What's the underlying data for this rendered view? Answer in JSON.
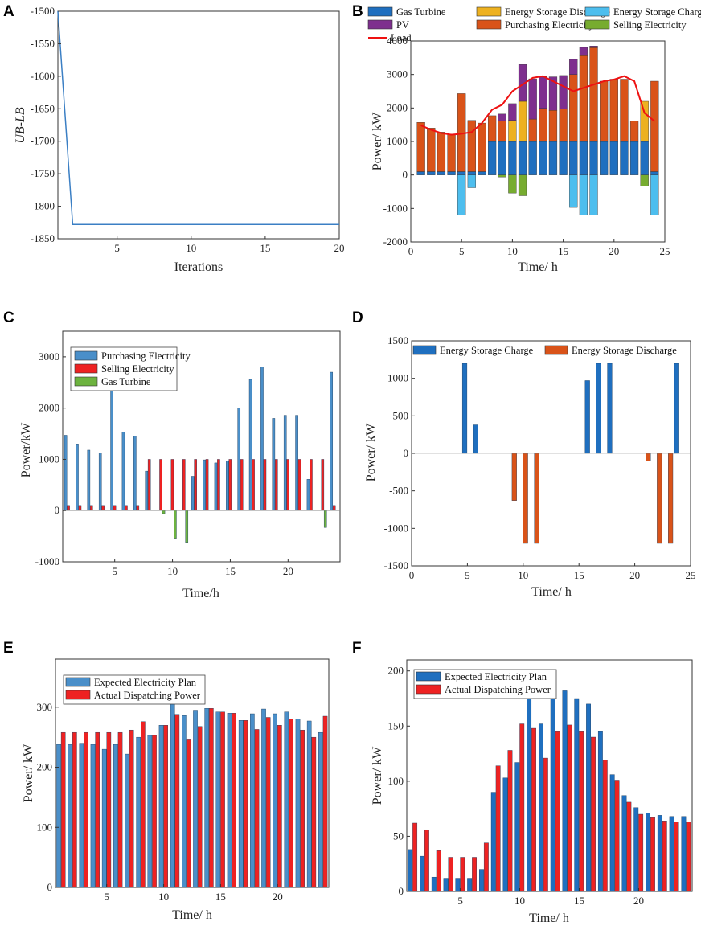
{
  "panels": {
    "A": {
      "label": "A",
      "chart_data": {
        "type": "line",
        "xlabel": "Iterations",
        "ylabel": "UB-LB",
        "xlim": [
          1,
          20
        ],
        "ylim": [
          -1850,
          -1500
        ],
        "xticks": [
          5,
          10,
          15,
          20
        ],
        "yticks": [
          -1500,
          -1550,
          -1600,
          -1650,
          -1700,
          -1750,
          -1800,
          -1850
        ],
        "x": [
          1,
          2,
          3,
          4,
          5,
          6,
          7,
          8,
          9,
          10,
          11,
          12,
          13,
          14,
          15,
          16,
          17,
          18,
          19,
          20
        ],
        "y": [
          -1500,
          -1828,
          -1828,
          -1828,
          -1828,
          -1828,
          -1828,
          -1828,
          -1828,
          -1828,
          -1828,
          -1828,
          -1828,
          -1828,
          -1828,
          -1828,
          -1828,
          -1828,
          -1828,
          -1828
        ],
        "color": "#3b7fc4"
      }
    },
    "B": {
      "label": "B",
      "chart_data": {
        "type": "bar",
        "stacked": true,
        "xlabel": "Time/ h",
        "ylabel": "Power/ kW",
        "xlim": [
          0,
          25
        ],
        "ylim": [
          -2000,
          4000
        ],
        "xticks": [
          0,
          5,
          10,
          15,
          20,
          25
        ],
        "yticks": [
          -2000,
          -1000,
          0,
          1000,
          2000,
          3000,
          4000
        ],
        "categories": [
          1,
          2,
          3,
          4,
          5,
          6,
          7,
          8,
          9,
          10,
          11,
          12,
          13,
          14,
          15,
          16,
          17,
          18,
          19,
          20,
          21,
          22,
          23,
          24
        ],
        "series": [
          {
            "name": "Gas Turbine",
            "color": "#1f6fbf",
            "values": [
              100,
              100,
              100,
              100,
              100,
              100,
              100,
              1000,
              1000,
              1000,
              1000,
              1000,
              1000,
              1000,
              1000,
              1000,
              1000,
              1000,
              1000,
              1000,
              1000,
              1000,
              1000,
              100
            ]
          },
          {
            "name": "Purchasing Electricity",
            "color": "#d95319",
            "values": [
              1470,
              1300,
              1180,
              1120,
              2330,
              1530,
              1450,
              770,
              620,
              0,
              0,
              670,
              990,
              930,
              970,
              2000,
              2560,
              2800,
              1800,
              1860,
              1860,
              610,
              0,
              2700
            ]
          },
          {
            "name": "Energy Storage Discharge",
            "color": "#edb120",
            "values": [
              0,
              0,
              0,
              0,
              0,
              0,
              0,
              0,
              0,
              630,
              1200,
              0,
              0,
              0,
              0,
              0,
              0,
              0,
              0,
              0,
              0,
              0,
              1200,
              0
            ]
          },
          {
            "name": "PV",
            "color": "#7e2f8e",
            "values": [
              0,
              0,
              0,
              0,
              0,
              0,
              0,
              0,
              200,
              500,
              1100,
              1200,
              950,
              1000,
              1000,
              450,
              250,
              50,
              0,
              0,
              0,
              0,
              0,
              0
            ]
          },
          {
            "name": "Energy Storage Charge",
            "color": "#4dbeee",
            "values": [
              0,
              0,
              0,
              0,
              -1200,
              -380,
              0,
              0,
              0,
              0,
              0,
              0,
              0,
              0,
              0,
              -970,
              -1200,
              -1200,
              0,
              0,
              0,
              0,
              0,
              -1200
            ]
          },
          {
            "name": "Selling Electricity",
            "color": "#77ac30",
            "values": [
              0,
              0,
              0,
              0,
              0,
              0,
              0,
              0,
              -60,
              -540,
              -620,
              0,
              0,
              0,
              0,
              0,
              0,
              0,
              0,
              0,
              0,
              0,
              -330,
              0
            ]
          }
        ],
        "line": {
          "name": "Load",
          "color": "#ee1111",
          "x": [
            1,
            2,
            3,
            4,
            5,
            6,
            7,
            8,
            9,
            10,
            11,
            12,
            13,
            14,
            15,
            16,
            17,
            18,
            19,
            20,
            21,
            22,
            23,
            24
          ],
          "values": [
            1480,
            1350,
            1250,
            1200,
            1230,
            1280,
            1550,
            1950,
            2100,
            2500,
            2700,
            2900,
            2950,
            2800,
            2650,
            2500,
            2600,
            2700,
            2800,
            2850,
            2950,
            2800,
            1850,
            1600
          ]
        },
        "legend": [
          "Gas Turbine",
          "Energy Storage Discharge",
          "Energy Storage Charge",
          "PV",
          "Purchasing Electricity",
          "Selling Electricity",
          "Load"
        ]
      }
    },
    "C": {
      "label": "C",
      "chart_data": {
        "type": "bar",
        "xlabel": "Time/h",
        "ylabel": "Power/kW",
        "xlim": [
          0.5,
          24.5
        ],
        "ylim": [
          -1000,
          3500
        ],
        "xticks": [
          5,
          10,
          15,
          20
        ],
        "yticks": [
          -1000,
          0,
          1000,
          2000,
          3000
        ],
        "categories": [
          1,
          2,
          3,
          4,
          5,
          6,
          7,
          8,
          9,
          10,
          11,
          12,
          13,
          14,
          15,
          16,
          17,
          18,
          19,
          20,
          21,
          22,
          23,
          24
        ],
        "series": [
          {
            "name": "Purchasing Electricity",
            "color": "#4a8fc9",
            "values": [
              1470,
              1300,
              1180,
              1120,
              2330,
              1530,
              1450,
              770,
              0,
              0,
              0,
              670,
              990,
              930,
              970,
              2000,
              2560,
              2800,
              1800,
              1860,
              1860,
              610,
              0,
              2700
            ]
          },
          {
            "name": "Selling Electricity",
            "color": "#ee2222",
            "values": [
              100,
              100,
              100,
              100,
              100,
              100,
              100,
              1000,
              1000,
              1000,
              1000,
              1000,
              1000,
              1000,
              1000,
              1000,
              1000,
              1000,
              1000,
              1000,
              1000,
              1000,
              1000,
              100
            ]
          },
          {
            "name": "Gas Turbine",
            "color": "#6db33f",
            "values": [
              0,
              0,
              0,
              0,
              0,
              0,
              0,
              0,
              -60,
              -540,
              -620,
              0,
              0,
              0,
              0,
              0,
              0,
              0,
              0,
              0,
              0,
              0,
              -330,
              0
            ]
          }
        ],
        "legend": [
          "Purchasing Electricity",
          "Selling Electricity",
          "Gas Turbine"
        ]
      }
    },
    "D": {
      "label": "D",
      "chart_data": {
        "type": "bar",
        "xlabel": "Time/ h",
        "ylabel": "Power/ kW",
        "xlim": [
          0,
          25
        ],
        "ylim": [
          -1500,
          1500
        ],
        "xticks": [
          0,
          5,
          10,
          15,
          20,
          25
        ],
        "yticks": [
          -1500,
          -1000,
          -500,
          0,
          500,
          1000,
          1500
        ],
        "categories": [
          1,
          2,
          3,
          4,
          5,
          6,
          7,
          8,
          9,
          10,
          11,
          12,
          13,
          14,
          15,
          16,
          17,
          18,
          19,
          20,
          21,
          22,
          23,
          24
        ],
        "series": [
          {
            "name": "Energy Storage Charge",
            "color": "#1f6fbf",
            "values": [
              0,
              0,
              0,
              0,
              1200,
              380,
              0,
              0,
              0,
              0,
              0,
              0,
              0,
              0,
              0,
              970,
              1200,
              1200,
              0,
              0,
              0,
              0,
              0,
              1200
            ]
          },
          {
            "name": "Energy Storage Discharge",
            "color": "#d95319",
            "values": [
              0,
              0,
              0,
              0,
              0,
              0,
              0,
              0,
              -630,
              -1200,
              -1200,
              0,
              0,
              0,
              0,
              0,
              0,
              0,
              0,
              0,
              -100,
              -1200,
              -1200,
              0
            ]
          }
        ],
        "legend": [
          "Energy Storage Charge",
          "Energy Storage Discharge"
        ]
      }
    },
    "E": {
      "label": "E",
      "chart_data": {
        "type": "bar",
        "xlabel": "Time/ h",
        "ylabel": "Power/ kW",
        "xlim": [
          0.5,
          24.5
        ],
        "ylim": [
          0,
          380
        ],
        "xticks": [
          5,
          10,
          15,
          20
        ],
        "yticks": [
          0,
          100,
          200,
          300
        ],
        "categories": [
          1,
          2,
          3,
          4,
          5,
          6,
          7,
          8,
          9,
          10,
          11,
          12,
          13,
          14,
          15,
          16,
          17,
          18,
          19,
          20,
          21,
          22,
          23,
          24
        ],
        "series": [
          {
            "name": "Expected Electricity Plan",
            "color": "#4a8fc9",
            "values": [
              238,
              238,
              240,
              238,
              230,
              238,
              222,
              250,
              253,
              270,
              306,
              286,
              295,
              298,
              292,
              290,
              278,
              289,
              297,
              289,
              292,
              280,
              277,
              258
            ]
          },
          {
            "name": "Actual Dispatching Power",
            "color": "#ee2222",
            "values": [
              258,
              258,
              258,
              258,
              258,
              258,
              262,
              276,
              253,
              270,
              288,
              247,
              268,
              298,
              292,
              290,
              278,
              263,
              283,
              270,
              280,
              262,
              250,
              285
            ]
          }
        ],
        "legend": [
          "Expected Electricity Plan",
          "Actual Dispatching Power"
        ]
      }
    },
    "F": {
      "label": "F",
      "chart_data": {
        "type": "bar",
        "xlabel": "Time/ h",
        "ylabel": "Power/ kW",
        "xlim": [
          0.5,
          24.5
        ],
        "ylim": [
          0,
          210
        ],
        "xticks": [
          5,
          10,
          15,
          20
        ],
        "yticks": [
          0,
          50,
          100,
          150,
          200
        ],
        "categories": [
          1,
          2,
          3,
          4,
          5,
          6,
          7,
          8,
          9,
          10,
          11,
          12,
          13,
          14,
          15,
          16,
          17,
          18,
          19,
          20,
          21,
          22,
          23,
          24
        ],
        "series": [
          {
            "name": "Expected Electricity Plan",
            "color": "#1f6fbf",
            "values": [
              38,
              32,
              13,
              12,
              12,
              12,
              20,
              90,
              103,
              117,
              178,
              152,
              175,
              182,
              175,
              170,
              145,
              106,
              87,
              76,
              71,
              69,
              68,
              68
            ]
          },
          {
            "name": "Actual Dispatching Power",
            "color": "#ee2222",
            "values": [
              62,
              56,
              37,
              31,
              31,
              31,
              44,
              114,
              128,
              152,
              148,
              121,
              145,
              151,
              145,
              140,
              119,
              101,
              81,
              70,
              67,
              64,
              63,
              63
            ]
          }
        ],
        "legend": [
          "Expected Electricity Plan",
          "Actual Dispatching Power"
        ]
      }
    }
  }
}
